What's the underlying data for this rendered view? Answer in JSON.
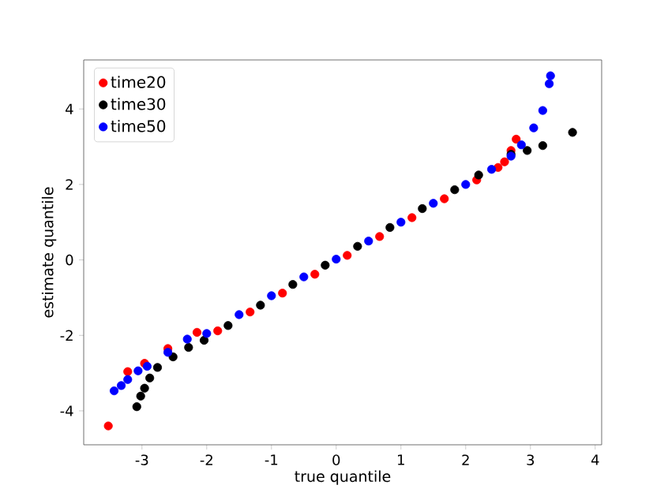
{
  "chart_data": {
    "type": "scatter",
    "xlabel": "true quantile",
    "ylabel": "estimate quantile",
    "xlim": [
      -3.9,
      4.1
    ],
    "ylim": [
      -4.9,
      5.3
    ],
    "xticks": [
      -3,
      -2,
      -1,
      0,
      1,
      2,
      3,
      4
    ],
    "yticks": [
      -4,
      -2,
      0,
      2,
      4
    ],
    "legend": "top left",
    "marker": "circle",
    "series": [
      {
        "name": "time20",
        "color": "#ff0000",
        "x": [
          -3.52,
          -3.22,
          -2.96,
          -2.6,
          -2.15,
          -1.83,
          -1.33,
          -0.83,
          -0.33,
          0.17,
          0.67,
          1.17,
          1.67,
          2.17,
          2.5,
          2.6,
          2.7,
          2.78
        ],
        "values": [
          -4.4,
          -2.96,
          -2.74,
          -2.35,
          -1.92,
          -1.88,
          -1.38,
          -0.88,
          -0.38,
          0.12,
          0.62,
          1.12,
          1.62,
          2.12,
          2.45,
          2.6,
          2.9,
          3.2
        ]
      },
      {
        "name": "time30",
        "color": "#000000",
        "x": [
          -3.08,
          -3.02,
          -2.96,
          -2.88,
          -2.76,
          -2.52,
          -2.28,
          -2.04,
          -1.67,
          -1.17,
          -0.67,
          -0.17,
          0.33,
          0.83,
          1.33,
          1.83,
          2.2,
          2.7,
          2.95,
          3.19,
          3.65
        ],
        "values": [
          -3.89,
          -3.61,
          -3.4,
          -3.13,
          -2.85,
          -2.57,
          -2.32,
          -2.13,
          -1.74,
          -1.2,
          -0.65,
          -0.14,
          0.36,
          0.86,
          1.36,
          1.86,
          2.25,
          2.8,
          2.9,
          3.03,
          3.38
        ]
      },
      {
        "name": "time50",
        "color": "#0000ff",
        "x": [
          -3.43,
          -3.32,
          -3.22,
          -3.06,
          -2.92,
          -2.6,
          -2.3,
          -2.0,
          -1.5,
          -1.0,
          -0.5,
          0,
          0.5,
          1.0,
          1.5,
          2.0,
          2.4,
          2.7,
          2.86,
          3.05,
          3.19,
          3.29,
          3.31
        ],
        "values": [
          -3.47,
          -3.33,
          -3.17,
          -2.94,
          -2.82,
          -2.45,
          -2.1,
          -1.95,
          -1.45,
          -0.95,
          -0.45,
          0.02,
          0.5,
          1.0,
          1.5,
          2.0,
          2.4,
          2.75,
          3.05,
          3.5,
          3.96,
          4.67,
          4.88
        ]
      }
    ]
  }
}
